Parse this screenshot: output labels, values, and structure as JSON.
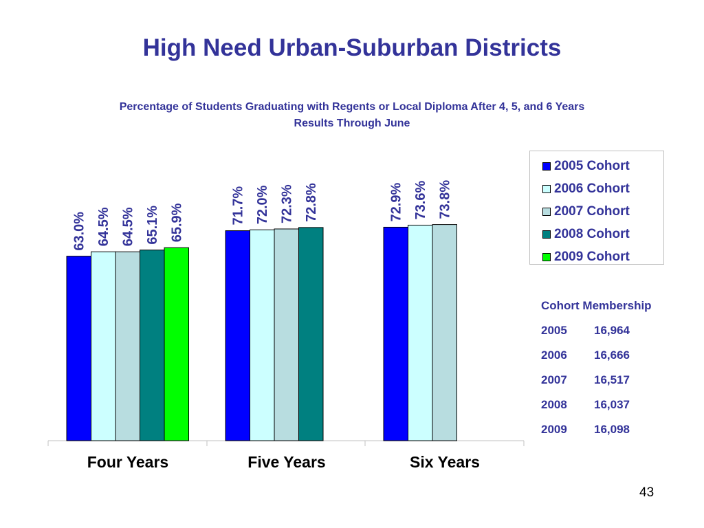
{
  "slide": {
    "title": "High Need Urban-Suburban Districts",
    "subtitle_line1": "Percentage of Students Graduating with Regents or Local Diploma After 4, 5, and 6 Years",
    "subtitle_line2": "Results Through June",
    "page_number": "43"
  },
  "chart_data": {
    "type": "bar",
    "title": "",
    "xlabel": "",
    "ylabel": "",
    "ylim": [
      0,
      100
    ],
    "grid": false,
    "legend_position": "right",
    "categories": [
      "Four Years",
      "Five Years",
      "Six Years"
    ],
    "series": [
      {
        "name": "2005 Cohort",
        "color": "#0000ff",
        "values": [
          63.0,
          71.7,
          72.9
        ],
        "labels": [
          "63.0%",
          "71.7%",
          "72.9%"
        ]
      },
      {
        "name": "2006 Cohort",
        "color": "#ccffff",
        "values": [
          64.5,
          72.0,
          73.6
        ],
        "labels": [
          "64.5%",
          "72.0%",
          "73.6%"
        ]
      },
      {
        "name": "2007 Cohort",
        "color": "#b8dde0",
        "values": [
          64.5,
          72.3,
          73.8
        ],
        "labels": [
          "64.5%",
          "72.3%",
          "73.8%"
        ]
      },
      {
        "name": "2008 Cohort",
        "color": "#008080",
        "values": [
          65.1,
          72.8,
          null
        ],
        "labels": [
          "65.1%",
          "72.8%",
          null
        ]
      },
      {
        "name": "2009 Cohort",
        "color": "#00ff00",
        "values": [
          65.9,
          null,
          null
        ],
        "labels": [
          "65.9%",
          null,
          null
        ]
      }
    ]
  },
  "membership": {
    "heading": "Cohort Membership",
    "rows": [
      {
        "year": "2005",
        "count": "16,964"
      },
      {
        "year": "2006",
        "count": "16,666"
      },
      {
        "year": "2007",
        "count": "16,517"
      },
      {
        "year": "2008",
        "count": "16,037"
      },
      {
        "year": "2009",
        "count": "16,098"
      }
    ]
  },
  "colors": {
    "text_accent": "#333399"
  }
}
